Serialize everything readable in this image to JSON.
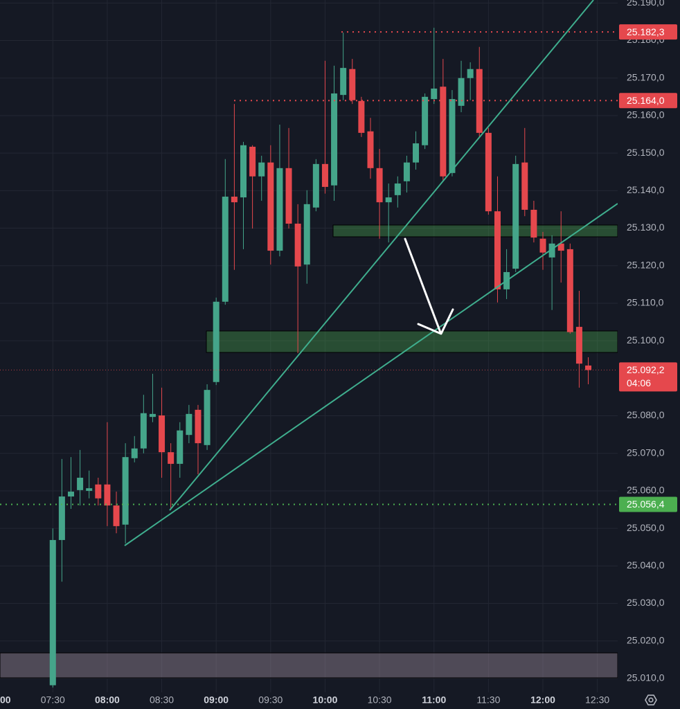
{
  "chart_data": {
    "type": "candlestick",
    "x": [
      450,
      455,
      460,
      465,
      470,
      475,
      480,
      485,
      490,
      495,
      500,
      505,
      510,
      515,
      520,
      525,
      530,
      535,
      540,
      545,
      550,
      555,
      560,
      565,
      570,
      575,
      580,
      585,
      590,
      595,
      600,
      605,
      610,
      615,
      620,
      625,
      630,
      635,
      640,
      645,
      650,
      655,
      660,
      665,
      670,
      675,
      680,
      685,
      690,
      695,
      700,
      705,
      710,
      715,
      720,
      725,
      730,
      735,
      740,
      745
    ],
    "open": [
      25008.2,
      25046.9,
      25058.5,
      25060.2,
      25060.0,
      25061.7,
      25061.7,
      25056.1,
      25051.0,
      25068.7,
      25071.3,
      25079.7,
      25080.1,
      25070.3,
      25067.2,
      25074.9,
      25081.6,
      25072.2,
      25089.0,
      25110.4,
      25138.4,
      25138.2,
      25151.7,
      25143.8,
      25147.5,
      25124.0,
      25146.0,
      25131.2,
      25120.3,
      25135.5,
      25147.1,
      25141.4,
      25165.5,
      25172.4,
      25163.9,
      25155.8,
      25146.0,
      25136.9,
      25138.8,
      25142.5,
      25147.5,
      25152.1,
      25164.4,
      25167.7,
      25144.7,
      25162.6,
      25170.0,
      25172.4,
      25155.4,
      25134.5,
      25113.7,
      25119.2,
      25147.5,
      25134.9,
      25127.2,
      25122.2,
      25125.9,
      25124.4,
      25103.7,
      25093.4
    ],
    "high": [
      25050.0,
      25068.5,
      25069.0,
      25070.9,
      25065.4,
      25063.5,
      25078.3,
      25059.8,
      25072.7,
      25074.6,
      25085.6,
      25091.2,
      25087.5,
      25072.7,
      25078.3,
      25082.9,
      25082.9,
      25088.4,
      25111.5,
      25148.4,
      25163.1,
      25153.0,
      25152.1,
      25149.3,
      25152.1,
      25157.6,
      25156.7,
      25136.4,
      25140.1,
      25148.4,
      25174.6,
      25173.3,
      25182.1,
      25175.1,
      25165.0,
      25159.4,
      25151.1,
      25141.9,
      25143.8,
      25149.3,
      25155.8,
      25165.9,
      25183.4,
      25175.1,
      25166.8,
      25174.6,
      25174.2,
      25178.3,
      25156.7,
      25143.8,
      25124.4,
      25149.3,
      25156.7,
      25137.3,
      25129.0,
      25128.1,
      25134.5,
      25125.9,
      25113.3,
      25095.6
    ],
    "low": [
      25007.6,
      25035.8,
      25055.2,
      25056.1,
      25058.0,
      25056.1,
      25050.6,
      25048.7,
      25046.0,
      25067.6,
      25070.0,
      25078.3,
      25063.5,
      25055.2,
      25063.5,
      25072.7,
      25064.4,
      25070.9,
      25088.2,
      25109.6,
      25118.9,
      25124.4,
      25129.9,
      25137.3,
      25120.3,
      25122.5,
      25129.9,
      25096.7,
      25115.2,
      25134.5,
      25139.2,
      25137.3,
      25164.1,
      25163.1,
      25154.3,
      25143.2,
      25127.2,
      25126.2,
      25135.5,
      25139.5,
      25145.6,
      25151.1,
      25163.1,
      25142.5,
      25143.8,
      25160.9,
      25164.1,
      25154.3,
      25133.6,
      25110.2,
      25111.1,
      25118.3,
      25133.2,
      25126.2,
      25118.9,
      25108.2,
      25115.5,
      25101.9,
      25087.5,
      25088.4
    ],
    "close": [
      25046.9,
      25058.5,
      25059.8,
      25063.5,
      25060.7,
      25058.0,
      25056.1,
      25050.6,
      25069.0,
      25071.3,
      25080.7,
      25080.5,
      25070.3,
      25067.2,
      25076.1,
      25080.5,
      25072.7,
      25086.9,
      25110.4,
      25138.4,
      25136.9,
      25152.1,
      25143.8,
      25147.5,
      25124.0,
      25146.0,
      25131.2,
      25119.8,
      25136.4,
      25147.1,
      25141.0,
      25165.9,
      25172.7,
      25164.1,
      25155.4,
      25146.0,
      25136.9,
      25138.2,
      25141.9,
      25147.5,
      25152.6,
      25165.0,
      25167.2,
      25143.8,
      25164.4,
      25170.0,
      25172.4,
      25155.4,
      25134.5,
      25113.7,
      25118.3,
      25147.1,
      25134.9,
      25127.5,
      25123.5,
      25125.9,
      25124.0,
      25102.3,
      25093.9,
      25092.2
    ],
    "up_color": "#45a58a",
    "down_color": "#e5484d",
    "xlim": [
      420.9,
      761.2
    ],
    "ylim": [
      25006.3,
      25190.8
    ],
    "grid": true,
    "xticks": [
      {
        "value": 420,
        "label": "00"
      },
      {
        "value": 450,
        "label": "07:30"
      },
      {
        "value": 480,
        "label": "08:00"
      },
      {
        "value": 510,
        "label": "08:30"
      },
      {
        "value": 540,
        "label": "09:00"
      },
      {
        "value": 570,
        "label": "09:30"
      },
      {
        "value": 600,
        "label": "10:00"
      },
      {
        "value": 630,
        "label": "10:30"
      },
      {
        "value": 660,
        "label": "11:00"
      },
      {
        "value": 690,
        "label": "11:30"
      },
      {
        "value": 720,
        "label": "12:00"
      },
      {
        "value": 750,
        "label": "12:30"
      }
    ],
    "yticks": [
      {
        "value": 25010,
        "label": "25.010,0"
      },
      {
        "value": 25020,
        "label": "25.020,0"
      },
      {
        "value": 25030,
        "label": "25.030,0"
      },
      {
        "value": 25040,
        "label": "25.040,0"
      },
      {
        "value": 25050,
        "label": "25.050,0"
      },
      {
        "value": 25060,
        "label": "25.060,0"
      },
      {
        "value": 25070,
        "label": "25.070,0"
      },
      {
        "value": 25080,
        "label": "25.080,0"
      },
      {
        "value": 25100,
        "label": "25.100,0"
      },
      {
        "value": 25110,
        "label": "25.110,0"
      },
      {
        "value": 25120,
        "label": "25.120,0"
      },
      {
        "value": 25130,
        "label": "25.130,0"
      },
      {
        "value": 25140,
        "label": "25.140,0"
      },
      {
        "value": 25150,
        "label": "25.150,0"
      },
      {
        "value": 25160,
        "label": "25.160,0"
      },
      {
        "value": 25170,
        "label": "25.170,0"
      },
      {
        "value": 25180,
        "label": "25.180,0"
      },
      {
        "value": 25190,
        "label": "25.190,0"
      }
    ],
    "price_lines": [
      {
        "value": 25182.3,
        "label": "25.182,3",
        "color": "#e5484d"
      },
      {
        "value": 25164.0,
        "label": "25.164,0",
        "color": "#e5484d"
      },
      {
        "value": 25092.2,
        "label": "25.092,2",
        "color": "#e5484d"
      },
      {
        "value": 25056.4,
        "label": "25.056,4",
        "color": "#4caf50"
      }
    ],
    "countdown": "04:06"
  }
}
